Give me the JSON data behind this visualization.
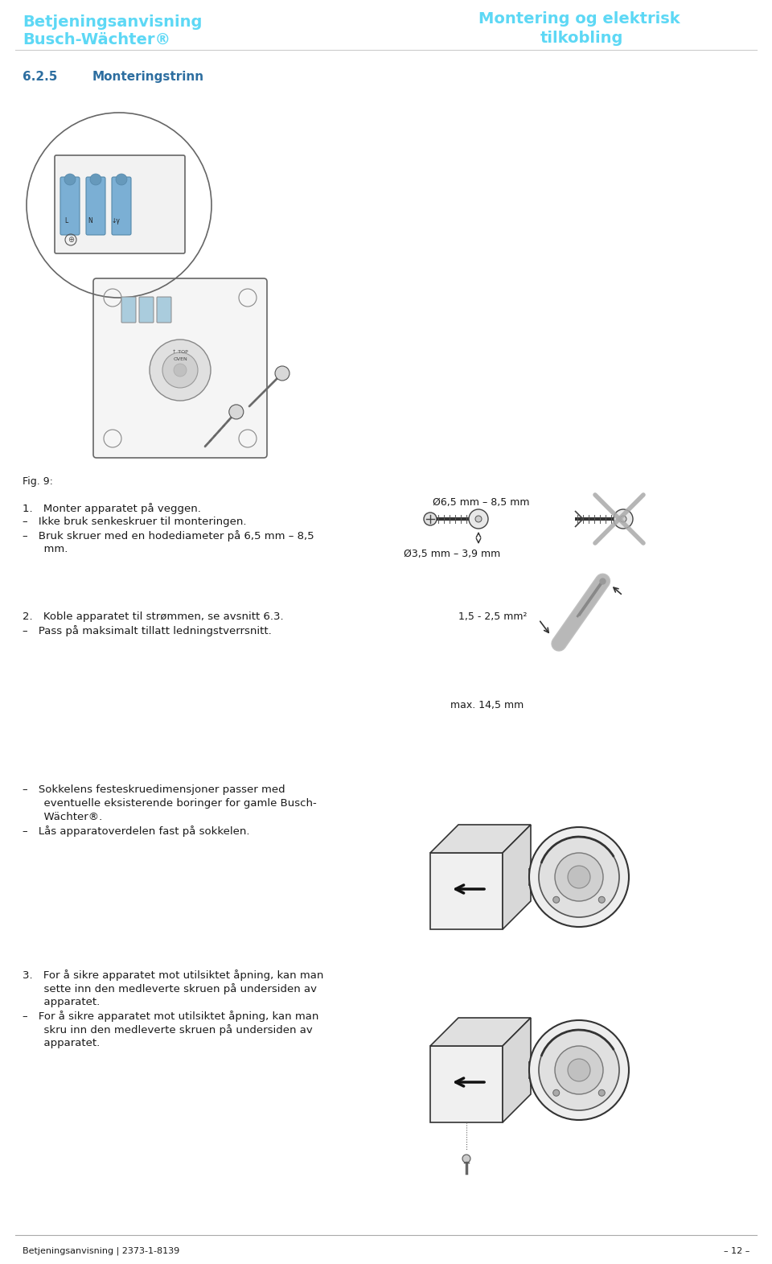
{
  "header_left_line1": "Betjeningsanvisning",
  "header_left_line2": "Busch-Wächter®",
  "header_right_line1": "Montering og elektrisk",
  "header_right_line2": "tilkobling",
  "header_color": "#5dd8f5",
  "section_number": "6.2.5",
  "section_title": "Monteringstrinn",
  "section_title_color": "#2d6ea0",
  "fig_label": "Fig. 9:",
  "b1_l1": "1. Monter apparatet på veggen.",
  "b1_l2": "– Ikke bruk senkeskruer til monteringen.",
  "b1_l3": "– Bruk skruer med en hodediameter på 6,5 mm – 8,5",
  "b1_l4": "  mm.",
  "screw_label1": "Ø6,5 mm – 8,5 mm",
  "screw_label2": "Ø3,5 mm – 3,9 mm",
  "b2_l1": "2. Koble apparatet til strømmen, se avsnitt 6.3.",
  "b2_l2": "– Pass på maksimalt tillatt ledningstverrsnitt.",
  "cable_label1": "1,5 - 2,5 mm²",
  "cable_label2": "max. 14,5 mm",
  "b3_l1": "– Sokkelens festeskruedimensjoner passer med",
  "b3_l2": "  eventuelle eksisterende boringer for gamle Busch-",
  "b3_l3": "  Wächter®.",
  "b3_l4": "– Lås apparatoverdelen fast på sokkelen.",
  "b4_l1": "3. For å sikre apparatet mot utilsiktet åpning, kan man",
  "b4_l2": "  sette inn den medleverte skruen på undersiden av",
  "b4_l3": "  apparatet.",
  "b4_l4": "– For å sikre apparatet mot utilsiktet åpning, kan man",
  "b4_l5": "  skru inn den medleverte skruen på undersiden av",
  "b4_l6": "  apparatet.",
  "footer_left": "Betjeningsanvisning | 2373-1-8139",
  "footer_right": "– 12 –",
  "footer_line_color": "#aaaaaa",
  "bg_color": "#ffffff",
  "text_color": "#1a1a1a",
  "lc": "#333333",
  "gray_x_color": "#aaaaaa"
}
